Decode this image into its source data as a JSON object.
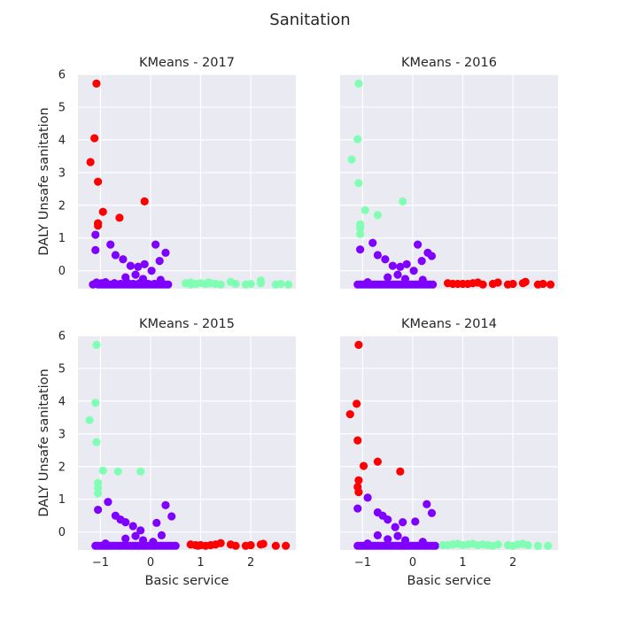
{
  "figure": {
    "title": "Sanitation"
  },
  "colors": {
    "c0": "#8000ff",
    "c1": "#80ffb4",
    "c2": "#ff0000",
    "plot_bg": "#eaeaf2",
    "grid": "#ffffff"
  },
  "chart_data": [
    {
      "type": "scatter",
      "title": "KMeans - 2017",
      "xlabel": "",
      "ylabel": "DALY Unsafe sanitation",
      "xlim": [
        -1.45,
        2.9
      ],
      "ylim": [
        -0.55,
        6.0
      ],
      "xticks": [],
      "yticks": [
        "0",
        "1",
        "2",
        "3",
        "4",
        "5",
        "6"
      ],
      "series": [
        {
          "color": "c0",
          "x": [
            -1.1,
            -1.1,
            -1.05,
            -1.0,
            -0.95,
            -0.9,
            -0.85,
            -0.8,
            -0.75,
            -0.7,
            -0.65,
            -0.6,
            -0.55,
            -0.5,
            -0.45,
            -0.4,
            -0.35,
            -0.3,
            -0.25,
            -0.2,
            -0.15,
            -0.1,
            -0.05,
            0.0,
            0.05,
            0.1,
            0.15,
            0.2,
            0.25,
            0.3,
            0.35,
            -1.15,
            -0.98,
            -0.88,
            -0.72,
            -0.6,
            -0.45,
            -0.35,
            -0.22,
            -0.05,
            0.08,
            -1.08,
            -0.8,
            -0.7,
            -0.55,
            -0.4,
            -0.25,
            -0.12,
            0.1,
            0.3,
            0.18,
            0.02,
            -0.3,
            -0.5,
            -0.9,
            -0.15,
            0.2
          ],
          "y": [
            1.1,
            0.63,
            -0.42,
            -0.42,
            -0.42,
            -0.42,
            -0.42,
            -0.42,
            -0.42,
            -0.42,
            -0.42,
            -0.42,
            -0.42,
            -0.42,
            -0.42,
            -0.42,
            -0.42,
            -0.42,
            -0.42,
            -0.42,
            -0.42,
            -0.42,
            -0.42,
            -0.42,
            -0.42,
            -0.42,
            -0.42,
            -0.42,
            -0.42,
            -0.42,
            -0.42,
            -0.42,
            -0.38,
            -0.4,
            -0.38,
            -0.4,
            -0.38,
            -0.4,
            -0.38,
            -0.4,
            -0.4,
            -0.36,
            0.8,
            0.48,
            0.35,
            0.15,
            0.12,
            0.2,
            0.8,
            0.55,
            0.3,
            0.0,
            -0.12,
            -0.2,
            -0.35,
            -0.25,
            -0.28
          ]
        },
        {
          "color": "c1",
          "x": [
            0.7,
            0.8,
            0.9,
            1.0,
            1.1,
            1.2,
            1.3,
            1.4,
            1.6,
            1.7,
            1.9,
            2.0,
            2.2,
            2.2,
            2.5,
            2.6,
            2.75,
            0.8,
            1.15
          ],
          "y": [
            -0.38,
            -0.36,
            -0.4,
            -0.38,
            -0.4,
            -0.38,
            -0.4,
            -0.42,
            -0.34,
            -0.4,
            -0.42,
            -0.4,
            -0.38,
            -0.3,
            -0.42,
            -0.4,
            -0.42,
            -0.42,
            -0.36
          ]
        },
        {
          "color": "c2",
          "x": [
            -1.08,
            -1.12,
            -1.2,
            -1.05,
            -1.05,
            -1.05,
            -0.95,
            -0.62,
            -0.12
          ],
          "y": [
            5.72,
            4.05,
            3.32,
            2.72,
            1.45,
            1.38,
            1.8,
            1.62,
            2.12
          ]
        }
      ]
    },
    {
      "type": "scatter",
      "title": "KMeans - 2016",
      "xlabel": "",
      "ylabel": "",
      "xlim": [
        -1.45,
        2.9
      ],
      "ylim": [
        -0.55,
        6.0
      ],
      "xticks": [],
      "yticks": [],
      "series": [
        {
          "color": "c0",
          "x": [
            -1.1,
            -1.05,
            -1.0,
            -0.95,
            -0.9,
            -0.85,
            -0.8,
            -0.75,
            -0.7,
            -0.65,
            -0.6,
            -0.55,
            -0.5,
            -0.45,
            -0.4,
            -0.35,
            -0.3,
            -0.25,
            -0.2,
            -0.15,
            -0.1,
            -0.05,
            0.0,
            0.05,
            0.1,
            0.15,
            0.2,
            0.25,
            0.3,
            0.35,
            0.4,
            -1.05,
            -0.8,
            -0.7,
            -0.55,
            -0.4,
            -0.25,
            -0.12,
            0.1,
            0.3,
            0.18,
            0.02,
            -0.3,
            -0.5,
            -0.9,
            -0.15,
            0.2,
            0.38
          ],
          "y": [
            -0.42,
            -0.42,
            -0.42,
            -0.42,
            -0.42,
            -0.42,
            -0.42,
            -0.42,
            -0.42,
            -0.42,
            -0.42,
            -0.42,
            -0.42,
            -0.42,
            -0.42,
            -0.42,
            -0.42,
            -0.42,
            -0.42,
            -0.42,
            -0.42,
            -0.42,
            -0.42,
            -0.42,
            -0.42,
            -0.42,
            -0.42,
            -0.42,
            -0.42,
            -0.42,
            -0.42,
            0.65,
            0.85,
            0.48,
            0.35,
            0.15,
            0.12,
            0.2,
            0.8,
            0.55,
            0.3,
            0.0,
            -0.12,
            -0.2,
            -0.35,
            -0.25,
            -0.28,
            0.45
          ]
        },
        {
          "color": "c1",
          "x": [
            -1.08,
            -1.1,
            -1.22,
            -1.08,
            -1.05,
            -1.05,
            -1.05,
            -0.95,
            -0.7,
            -0.2
          ],
          "y": [
            5.72,
            4.02,
            3.4,
            2.68,
            1.42,
            1.3,
            1.12,
            1.85,
            1.7,
            2.12
          ]
        },
        {
          "color": "c2",
          "x": [
            0.7,
            0.8,
            0.9,
            1.0,
            1.1,
            1.2,
            1.3,
            1.4,
            1.6,
            1.7,
            1.9,
            2.0,
            2.2,
            2.25,
            2.5,
            2.6,
            2.75
          ],
          "y": [
            -0.38,
            -0.4,
            -0.4,
            -0.4,
            -0.4,
            -0.38,
            -0.36,
            -0.42,
            -0.4,
            -0.36,
            -0.42,
            -0.4,
            -0.38,
            -0.34,
            -0.42,
            -0.4,
            -0.42
          ]
        }
      ]
    },
    {
      "type": "scatter",
      "title": "KMeans - 2015",
      "xlabel": "Basic service",
      "ylabel": "DALY Unsafe sanitation",
      "xlim": [
        -1.45,
        2.9
      ],
      "ylim": [
        -0.55,
        6.0
      ],
      "xticks": [
        "−1",
        "0",
        "1",
        "2"
      ],
      "yticks": [
        "0",
        "1",
        "2",
        "3",
        "4",
        "5",
        "6"
      ],
      "series": [
        {
          "color": "c0",
          "x": [
            -1.1,
            -1.05,
            -1.0,
            -0.95,
            -0.9,
            -0.85,
            -0.8,
            -0.75,
            -0.7,
            -0.65,
            -0.6,
            -0.55,
            -0.5,
            -0.45,
            -0.4,
            -0.35,
            -0.3,
            -0.25,
            -0.2,
            -0.15,
            -0.1,
            -0.05,
            0.0,
            0.05,
            0.1,
            0.15,
            0.2,
            0.25,
            0.3,
            0.35,
            0.4,
            0.45,
            0.5,
            -1.05,
            -0.85,
            -0.7,
            -0.6,
            -0.5,
            -0.35,
            -0.2,
            0.12,
            0.3,
            0.42,
            0.22,
            -0.3,
            -0.5,
            -0.9,
            -0.15,
            0.05
          ],
          "y": [
            -0.42,
            -0.42,
            -0.42,
            -0.42,
            -0.42,
            -0.42,
            -0.42,
            -0.42,
            -0.42,
            -0.42,
            -0.42,
            -0.42,
            -0.42,
            -0.42,
            -0.42,
            -0.42,
            -0.42,
            -0.42,
            -0.42,
            -0.42,
            -0.42,
            -0.42,
            -0.42,
            -0.42,
            -0.42,
            -0.42,
            -0.42,
            -0.42,
            -0.42,
            -0.42,
            -0.42,
            -0.42,
            -0.42,
            0.68,
            0.92,
            0.5,
            0.38,
            0.3,
            0.18,
            0.05,
            0.28,
            0.82,
            0.48,
            -0.1,
            -0.12,
            -0.2,
            -0.35,
            -0.25,
            -0.3
          ]
        },
        {
          "color": "c1",
          "x": [
            -1.08,
            -1.1,
            -1.22,
            -1.08,
            -1.05,
            -1.05,
            -1.05,
            -0.95,
            -0.65,
            -0.2
          ],
          "y": [
            5.72,
            3.95,
            3.42,
            2.75,
            1.5,
            1.35,
            1.18,
            1.88,
            1.85,
            1.85
          ]
        },
        {
          "color": "c2",
          "x": [
            0.8,
            0.9,
            1.0,
            1.1,
            1.2,
            1.3,
            1.4,
            1.6,
            1.7,
            1.9,
            2.0,
            2.2,
            2.25,
            2.5,
            2.7,
            0.95
          ],
          "y": [
            -0.38,
            -0.4,
            -0.4,
            -0.42,
            -0.4,
            -0.38,
            -0.34,
            -0.38,
            -0.42,
            -0.42,
            -0.4,
            -0.38,
            -0.36,
            -0.42,
            -0.42,
            -0.42
          ]
        }
      ]
    },
    {
      "type": "scatter",
      "title": "KMeans - 2014",
      "xlabel": "Basic service",
      "ylabel": "",
      "xlim": [
        -1.45,
        2.9
      ],
      "ylim": [
        -0.55,
        6.0
      ],
      "xticks": [
        "−1",
        "0",
        "1",
        "2"
      ],
      "yticks": [],
      "series": [
        {
          "color": "c0",
          "x": [
            -1.1,
            -1.05,
            -1.0,
            -0.95,
            -0.9,
            -0.85,
            -0.8,
            -0.75,
            -0.7,
            -0.65,
            -0.6,
            -0.55,
            -0.5,
            -0.45,
            -0.4,
            -0.35,
            -0.3,
            -0.25,
            -0.2,
            -0.15,
            -0.1,
            -0.05,
            0.0,
            0.05,
            0.1,
            0.15,
            0.2,
            0.25,
            0.3,
            0.35,
            0.4,
            0.45,
            -1.1,
            -0.9,
            -0.7,
            -0.6,
            -0.5,
            -0.35,
            -0.2,
            0.05,
            0.28,
            0.38,
            -0.3,
            -0.5,
            -0.9,
            -0.15,
            -0.7,
            0.2
          ],
          "y": [
            -0.42,
            -0.42,
            -0.42,
            -0.42,
            -0.42,
            -0.42,
            -0.42,
            -0.42,
            -0.42,
            -0.42,
            -0.42,
            -0.42,
            -0.42,
            -0.42,
            -0.42,
            -0.42,
            -0.42,
            -0.42,
            -0.42,
            -0.42,
            -0.42,
            -0.42,
            -0.42,
            -0.42,
            -0.42,
            -0.42,
            -0.42,
            -0.42,
            -0.42,
            -0.42,
            -0.42,
            -0.42,
            0.72,
            1.05,
            0.6,
            0.5,
            0.38,
            0.15,
            0.3,
            0.32,
            0.85,
            0.58,
            -0.12,
            -0.22,
            -0.35,
            -0.25,
            -0.1,
            -0.3
          ]
        },
        {
          "color": "c1",
          "x": [
            0.6,
            0.7,
            0.8,
            0.9,
            1.0,
            1.1,
            1.2,
            1.3,
            1.4,
            1.5,
            1.6,
            1.7,
            1.9,
            2.0,
            2.1,
            2.2,
            2.3,
            2.5,
            2.7
          ],
          "y": [
            -0.4,
            -0.4,
            -0.38,
            -0.36,
            -0.4,
            -0.38,
            -0.36,
            -0.4,
            -0.38,
            -0.4,
            -0.42,
            -0.38,
            -0.4,
            -0.42,
            -0.38,
            -0.36,
            -0.4,
            -0.42,
            -0.42
          ]
        },
        {
          "color": "c2",
          "x": [
            -1.08,
            -1.12,
            -1.25,
            -1.1,
            -1.08,
            -1.1,
            -1.08,
            -0.98,
            -0.7,
            -0.25
          ],
          "y": [
            5.72,
            3.92,
            3.6,
            2.8,
            1.58,
            1.38,
            1.22,
            2.02,
            2.15,
            1.85
          ]
        }
      ]
    }
  ]
}
